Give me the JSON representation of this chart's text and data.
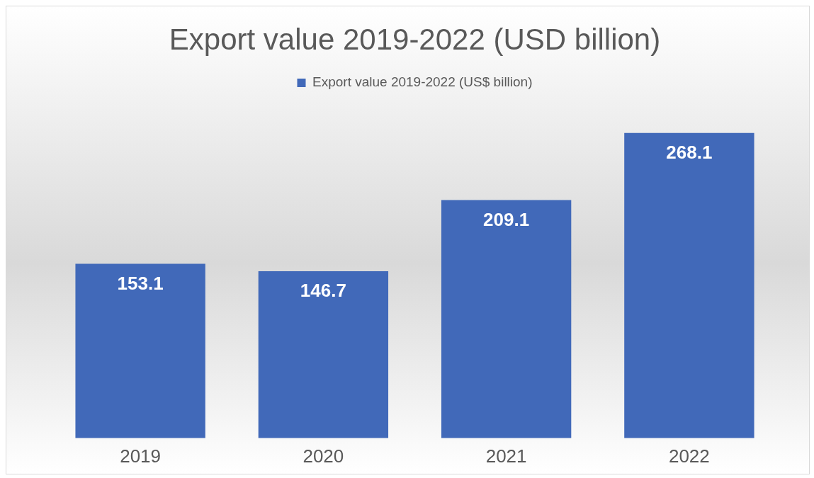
{
  "chart_data": {
    "type": "bar",
    "title": "Export value 2019-2022 (USD billion)",
    "categories": [
      "2019",
      "2020",
      "2021",
      "2022"
    ],
    "series": [
      {
        "name": "Export value 2019-2022 (US$ billion)",
        "color": "#4169b9",
        "values": [
          153.1,
          146.7,
          209.1,
          268.1
        ]
      }
    ],
    "data_labels": true,
    "legend": "top"
  }
}
